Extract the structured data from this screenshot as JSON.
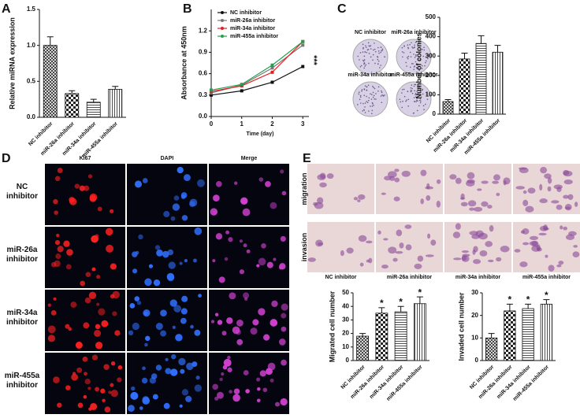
{
  "panels": [
    "A",
    "B",
    "C",
    "D",
    "E"
  ],
  "colony_labels": [
    "NC inhibitor",
    "miR-26a inhibitor",
    "miR-34a inhibitor",
    "miR-455a inhibitor"
  ],
  "stain_columns": [
    "Ki67",
    "DAPI",
    "Merge"
  ],
  "stain_rows": [
    "NC inhibitor",
    "miR-26a inhibitor",
    "miR-34a inhibitor",
    "miR-455a inhibitor"
  ],
  "transwell_rows": [
    "migration",
    "invasion"
  ],
  "transwell_columns": [
    "NC inhibitor",
    "miR-26a inhibitor",
    "miR-34a inhibitor",
    "miR-455a inhibitor"
  ],
  "chart_data": [
    {
      "type": "bar",
      "ylabel": "Relative miRNA expression",
      "categories": [
        "NC inhibitor",
        "miR-26a inhibitor",
        "miR-34a inhibitor",
        "miR-455a inhibitor"
      ],
      "values": [
        1.0,
        0.33,
        0.21,
        0.39
      ],
      "errors": [
        0.12,
        0.04,
        0.04,
        0.04
      ],
      "patterns": [
        "crosshatch",
        "checker",
        "hlines",
        "vlines"
      ],
      "ylim": [
        0,
        1.5
      ],
      "yticks": [
        {
          "value": 0,
          "label": "0.0"
        },
        {
          "value": 0.5,
          "label": "0.5"
        },
        {
          "value": 1,
          "label": "1.0"
        },
        {
          "value": 1.5,
          "label": "1.5"
        }
      ]
    },
    {
      "type": "line",
      "xlabel": "Time (day)",
      "ylabel": "Absorbance at 450nm",
      "x": [
        0,
        1,
        2,
        3
      ],
      "xlim": [
        0,
        3.2
      ],
      "xticks": [
        0,
        1,
        2,
        3
      ],
      "ylim": [
        0,
        1.5
      ],
      "yticks": [
        {
          "value": 0,
          "label": "0.0"
        },
        0.3,
        0.6,
        0.9,
        1.2
      ],
      "annotation": "***",
      "series": [
        {
          "name": "NC inhibitor",
          "color": "#111111",
          "values": [
            0.3,
            0.36,
            0.48,
            0.7
          ]
        },
        {
          "name": "miR-26a inhibitor",
          "color": "#777777",
          "values": [
            0.33,
            0.44,
            0.68,
            1.0
          ]
        },
        {
          "name": "miR-34a inhibitor",
          "color": "#e02020",
          "values": [
            0.35,
            0.43,
            0.62,
            1.05
          ]
        },
        {
          "name": "miR-455a inhibitor",
          "color": "#22a050",
          "values": [
            0.37,
            0.45,
            0.72,
            1.05
          ]
        }
      ]
    },
    {
      "type": "bar",
      "ylabel": "Number of colonies",
      "categories": [
        "NC inhibitor",
        "miR-26a inhibitor",
        "miR-34a inhibitor",
        "miR-455a inhibitor"
      ],
      "values": [
        65,
        285,
        365,
        320
      ],
      "errors": [
        10,
        30,
        40,
        35
      ],
      "patterns": [
        "crosshatch",
        "checker",
        "hlines",
        "vlines"
      ],
      "ylim": [
        0,
        500
      ],
      "yticks": [
        0,
        100,
        200,
        300,
        400,
        500
      ]
    },
    {
      "type": "bar",
      "ylabel": "Migrated cell number",
      "categories": [
        "NC inhibitor",
        "miR-26a inhibitor",
        "miR-34a inhibitor",
        "miR-455a inhibitor"
      ],
      "values": [
        18,
        35,
        36,
        42
      ],
      "errors": [
        2,
        4,
        4,
        5
      ],
      "significance": [
        null,
        "*",
        "*",
        "*"
      ],
      "patterns": [
        "crosshatch",
        "checker",
        "hlines",
        "vlines"
      ],
      "ylim": [
        0,
        50
      ],
      "yticks": [
        0,
        10,
        20,
        30,
        40,
        50
      ]
    },
    {
      "type": "bar",
      "ylabel": "Invaded cell number",
      "categories": [
        "NC inhibitor",
        "miR-26a inhibitor",
        "miR-34a inhibitor",
        "miR-455a inhibitor"
      ],
      "values": [
        10,
        22,
        23,
        25
      ],
      "errors": [
        2,
        3,
        2,
        2
      ],
      "significance": [
        null,
        "*",
        "*",
        "*"
      ],
      "patterns": [
        "crosshatch",
        "checker",
        "hlines",
        "vlines"
      ],
      "ylim": [
        0,
        30
      ],
      "yticks": [
        0,
        10,
        20,
        30
      ]
    }
  ]
}
